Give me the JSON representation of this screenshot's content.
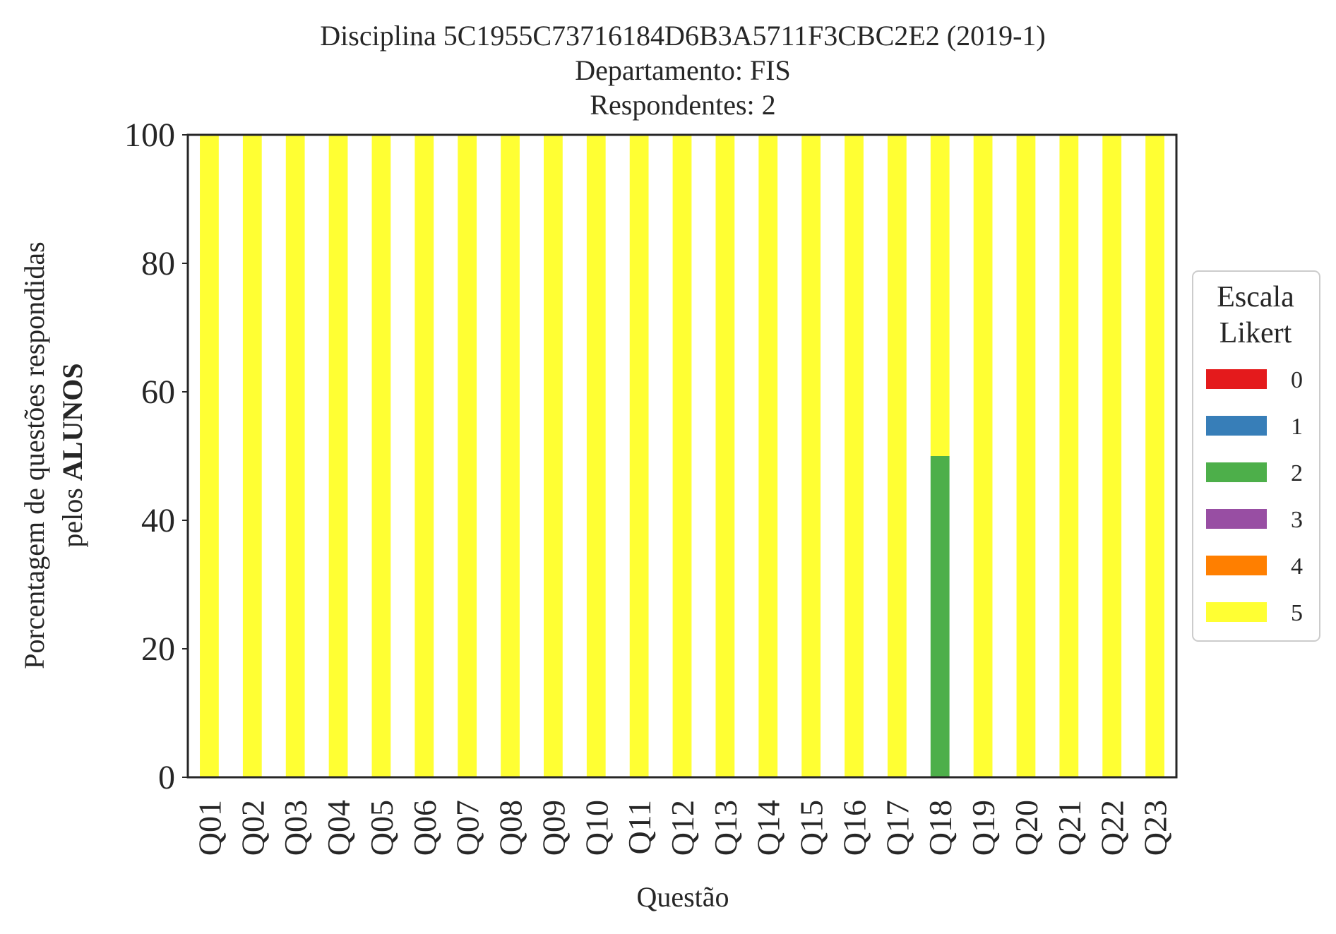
{
  "chart_data": {
    "type": "bar",
    "stacked": true,
    "title_lines": [
      "Disciplina 5C1955C73716184D6B3A5711F3CBC2E2 (2019-1)",
      "Departamento: FIS",
      "Respondentes: 2"
    ],
    "xlabel": "Questão",
    "ylabel_line1": "Porcentagem de questões respondidas",
    "ylabel_line2_prefix": "pelos",
    "ylabel_line2_bold": "ALUNOS",
    "ylim": [
      0,
      100
    ],
    "yticks": [
      "0",
      "20",
      "40",
      "60",
      "80",
      "100"
    ],
    "categories": [
      "Q01",
      "Q02",
      "Q03",
      "Q04",
      "Q05",
      "Q06",
      "Q07",
      "Q08",
      "Q09",
      "Q10",
      "Q11",
      "Q12",
      "Q13",
      "Q14",
      "Q15",
      "Q16",
      "Q17",
      "Q18",
      "Q19",
      "Q20",
      "Q21",
      "Q22",
      "Q23"
    ],
    "legend": {
      "title_lines": [
        "Escala",
        "Likert"
      ],
      "placement": "right"
    },
    "series": [
      {
        "name": "0",
        "color": "#e41a1c",
        "values": [
          0,
          0,
          0,
          0,
          0,
          0,
          0,
          0,
          0,
          0,
          0,
          0,
          0,
          0,
          0,
          0,
          0,
          0,
          0,
          0,
          0,
          0,
          0
        ]
      },
      {
        "name": "1",
        "color": "#377eb8",
        "values": [
          0,
          0,
          0,
          0,
          0,
          0,
          0,
          0,
          0,
          0,
          0,
          0,
          0,
          0,
          0,
          0,
          0,
          0,
          0,
          0,
          0,
          0,
          0
        ]
      },
      {
        "name": "2",
        "color": "#4daf4a",
        "values": [
          0,
          0,
          0,
          0,
          0,
          0,
          0,
          0,
          0,
          0,
          0,
          0,
          0,
          0,
          0,
          0,
          0,
          50,
          0,
          0,
          0,
          0,
          0
        ]
      },
      {
        "name": "3",
        "color": "#984ea3",
        "values": [
          0,
          0,
          0,
          0,
          0,
          0,
          0,
          0,
          0,
          0,
          0,
          0,
          0,
          0,
          0,
          0,
          0,
          0,
          0,
          0,
          0,
          0,
          0
        ]
      },
      {
        "name": "4",
        "color": "#ff7f00",
        "values": [
          0,
          0,
          0,
          0,
          0,
          0,
          0,
          0,
          0,
          0,
          0,
          0,
          0,
          0,
          0,
          0,
          0,
          0,
          0,
          0,
          0,
          0,
          0
        ]
      },
      {
        "name": "5",
        "color": "#ffff33",
        "values": [
          100,
          100,
          100,
          100,
          100,
          100,
          100,
          100,
          100,
          100,
          100,
          100,
          100,
          100,
          100,
          100,
          100,
          50,
          100,
          100,
          100,
          100,
          100
        ]
      }
    ],
    "grid": false
  }
}
